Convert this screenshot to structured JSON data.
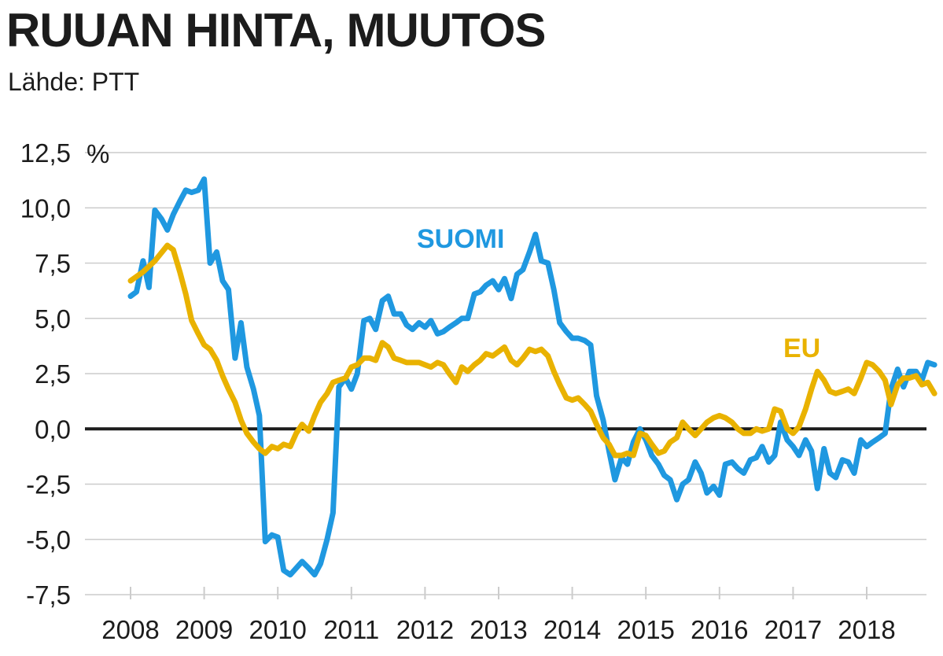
{
  "header": {
    "title": "RUUAN HINTA, MUUTOS",
    "source": "Lähde: PTT"
  },
  "colors": {
    "suomi": "#1f98e0",
    "eu": "#e9b200",
    "grid": "#cccccc",
    "zero": "#1c1c1c",
    "text": "#1c1c1c"
  },
  "chart_data": {
    "type": "line",
    "title": "RUUAN HINTA, MUUTOS",
    "subtitle": "Lähde: PTT",
    "ylabel": "%",
    "ylim": [
      -7.5,
      12.5
    ],
    "xlim": [
      2008,
      2018.85
    ],
    "grid": "horizontal",
    "y_ticks": [
      12.5,
      10.0,
      7.5,
      5.0,
      2.5,
      0.0,
      -2.5,
      -5.0,
      -7.5
    ],
    "y_tick_labels": [
      "12,5",
      "10,0",
      "7,5",
      "5,0",
      "2,5",
      "0,0",
      "-2,5",
      "-5,0",
      "-7,5"
    ],
    "x_ticks": [
      2008,
      2009,
      2010,
      2011,
      2012,
      2013,
      2014,
      2015,
      2016,
      2017,
      2018
    ],
    "x_tick_labels": [
      "2008",
      "2009",
      "2010",
      "2011",
      "2012",
      "2013",
      "2014",
      "2015",
      "2016",
      "2017",
      "2018"
    ],
    "series": [
      {
        "name": "SUOMI",
        "label": "SUOMI",
        "color": "#1f98e0",
        "points": [
          [
            2008.0,
            6.0
          ],
          [
            2008.08,
            6.2
          ],
          [
            2008.17,
            7.6
          ],
          [
            2008.25,
            6.4
          ],
          [
            2008.33,
            9.9
          ],
          [
            2008.42,
            9.5
          ],
          [
            2008.5,
            9.0
          ],
          [
            2008.58,
            9.7
          ],
          [
            2008.67,
            10.3
          ],
          [
            2008.75,
            10.8
          ],
          [
            2008.83,
            10.7
          ],
          [
            2008.92,
            10.8
          ],
          [
            2009.0,
            11.3
          ],
          [
            2009.08,
            7.5
          ],
          [
            2009.17,
            8.0
          ],
          [
            2009.25,
            6.7
          ],
          [
            2009.33,
            6.3
          ],
          [
            2009.42,
            3.2
          ],
          [
            2009.5,
            4.8
          ],
          [
            2009.58,
            2.8
          ],
          [
            2009.67,
            1.8
          ],
          [
            2009.75,
            0.6
          ],
          [
            2009.83,
            -5.1
          ],
          [
            2009.92,
            -4.8
          ],
          [
            2010.0,
            -4.9
          ],
          [
            2010.08,
            -6.4
          ],
          [
            2010.17,
            -6.6
          ],
          [
            2010.25,
            -6.3
          ],
          [
            2010.33,
            -6.0
          ],
          [
            2010.42,
            -6.3
          ],
          [
            2010.5,
            -6.6
          ],
          [
            2010.58,
            -6.1
          ],
          [
            2010.67,
            -5.0
          ],
          [
            2010.75,
            -3.8
          ],
          [
            2010.83,
            1.9
          ],
          [
            2010.92,
            2.3
          ],
          [
            2011.0,
            1.8
          ],
          [
            2011.08,
            2.5
          ],
          [
            2011.17,
            4.9
          ],
          [
            2011.25,
            5.0
          ],
          [
            2011.33,
            4.5
          ],
          [
            2011.42,
            5.8
          ],
          [
            2011.5,
            6.0
          ],
          [
            2011.58,
            5.2
          ],
          [
            2011.67,
            5.2
          ],
          [
            2011.75,
            4.7
          ],
          [
            2011.83,
            4.5
          ],
          [
            2011.92,
            4.8
          ],
          [
            2012.0,
            4.6
          ],
          [
            2012.08,
            4.9
          ],
          [
            2012.17,
            4.3
          ],
          [
            2012.25,
            4.4
          ],
          [
            2012.33,
            4.6
          ],
          [
            2012.42,
            4.8
          ],
          [
            2012.5,
            5.0
          ],
          [
            2012.58,
            5.0
          ],
          [
            2012.67,
            6.1
          ],
          [
            2012.75,
            6.2
          ],
          [
            2012.83,
            6.5
          ],
          [
            2012.92,
            6.7
          ],
          [
            2013.0,
            6.3
          ],
          [
            2013.08,
            6.8
          ],
          [
            2013.17,
            5.9
          ],
          [
            2013.25,
            7.0
          ],
          [
            2013.33,
            7.2
          ],
          [
            2013.42,
            8.0
          ],
          [
            2013.5,
            8.8
          ],
          [
            2013.58,
            7.6
          ],
          [
            2013.67,
            7.5
          ],
          [
            2013.75,
            6.3
          ],
          [
            2013.83,
            4.8
          ],
          [
            2013.92,
            4.4
          ],
          [
            2014.0,
            4.1
          ],
          [
            2014.08,
            4.1
          ],
          [
            2014.17,
            4.0
          ],
          [
            2014.25,
            3.8
          ],
          [
            2014.33,
            1.5
          ],
          [
            2014.42,
            0.4
          ],
          [
            2014.5,
            -1.0
          ],
          [
            2014.58,
            -2.3
          ],
          [
            2014.67,
            -1.3
          ],
          [
            2014.75,
            -1.6
          ],
          [
            2014.83,
            -0.6
          ],
          [
            2014.92,
            0.0
          ],
          [
            2015.0,
            -0.5
          ],
          [
            2015.08,
            -1.2
          ],
          [
            2015.17,
            -1.6
          ],
          [
            2015.25,
            -2.1
          ],
          [
            2015.33,
            -2.3
          ],
          [
            2015.42,
            -3.2
          ],
          [
            2015.5,
            -2.5
          ],
          [
            2015.58,
            -2.3
          ],
          [
            2015.67,
            -1.5
          ],
          [
            2015.75,
            -2.0
          ],
          [
            2015.83,
            -2.9
          ],
          [
            2015.92,
            -2.6
          ],
          [
            2016.0,
            -3.0
          ],
          [
            2016.08,
            -1.6
          ],
          [
            2016.17,
            -1.5
          ],
          [
            2016.25,
            -1.8
          ],
          [
            2016.33,
            -2.0
          ],
          [
            2016.42,
            -1.4
          ],
          [
            2016.5,
            -1.3
          ],
          [
            2016.58,
            -0.8
          ],
          [
            2016.67,
            -1.5
          ],
          [
            2016.75,
            -1.2
          ],
          [
            2016.83,
            0.3
          ],
          [
            2016.92,
            -0.5
          ],
          [
            2017.0,
            -0.8
          ],
          [
            2017.08,
            -1.2
          ],
          [
            2017.17,
            -0.5
          ],
          [
            2017.25,
            -1.0
          ],
          [
            2017.33,
            -2.7
          ],
          [
            2017.42,
            -0.9
          ],
          [
            2017.5,
            -2.0
          ],
          [
            2017.58,
            -2.2
          ],
          [
            2017.67,
            -1.4
          ],
          [
            2017.75,
            -1.5
          ],
          [
            2017.83,
            -2.0
          ],
          [
            2017.92,
            -0.5
          ],
          [
            2018.0,
            -0.8
          ],
          [
            2018.08,
            -0.6
          ],
          [
            2018.17,
            -0.4
          ],
          [
            2018.25,
            -0.2
          ],
          [
            2018.33,
            1.8
          ],
          [
            2018.42,
            2.7
          ],
          [
            2018.5,
            1.9
          ],
          [
            2018.58,
            2.6
          ],
          [
            2018.67,
            2.6
          ],
          [
            2018.75,
            2.2
          ],
          [
            2018.83,
            3.0
          ],
          [
            2018.92,
            2.9
          ]
        ]
      },
      {
        "name": "EU",
        "label": "EU",
        "color": "#e9b200",
        "points": [
          [
            2008.0,
            6.7
          ],
          [
            2008.17,
            7.1
          ],
          [
            2008.33,
            7.6
          ],
          [
            2008.5,
            8.3
          ],
          [
            2008.58,
            8.1
          ],
          [
            2008.67,
            7.1
          ],
          [
            2008.75,
            6.1
          ],
          [
            2008.83,
            4.9
          ],
          [
            2008.92,
            4.3
          ],
          [
            2009.0,
            3.8
          ],
          [
            2009.08,
            3.6
          ],
          [
            2009.17,
            3.1
          ],
          [
            2009.25,
            2.4
          ],
          [
            2009.33,
            1.8
          ],
          [
            2009.42,
            1.2
          ],
          [
            2009.5,
            0.4
          ],
          [
            2009.58,
            -0.2
          ],
          [
            2009.67,
            -0.6
          ],
          [
            2009.75,
            -0.9
          ],
          [
            2009.83,
            -1.1
          ],
          [
            2009.92,
            -0.8
          ],
          [
            2010.0,
            -0.9
          ],
          [
            2010.08,
            -0.7
          ],
          [
            2010.17,
            -0.8
          ],
          [
            2010.25,
            -0.2
          ],
          [
            2010.33,
            0.2
          ],
          [
            2010.42,
            -0.1
          ],
          [
            2010.5,
            0.6
          ],
          [
            2010.58,
            1.2
          ],
          [
            2010.67,
            1.6
          ],
          [
            2010.75,
            2.1
          ],
          [
            2010.83,
            2.2
          ],
          [
            2010.92,
            2.3
          ],
          [
            2011.0,
            2.8
          ],
          [
            2011.08,
            2.9
          ],
          [
            2011.17,
            3.2
          ],
          [
            2011.25,
            3.2
          ],
          [
            2011.33,
            3.1
          ],
          [
            2011.42,
            3.9
          ],
          [
            2011.5,
            3.7
          ],
          [
            2011.58,
            3.2
          ],
          [
            2011.67,
            3.1
          ],
          [
            2011.75,
            3.0
          ],
          [
            2011.83,
            3.0
          ],
          [
            2011.92,
            3.0
          ],
          [
            2012.0,
            2.9
          ],
          [
            2012.08,
            2.8
          ],
          [
            2012.17,
            3.0
          ],
          [
            2012.25,
            2.9
          ],
          [
            2012.33,
            2.5
          ],
          [
            2012.42,
            2.1
          ],
          [
            2012.5,
            2.8
          ],
          [
            2012.58,
            2.6
          ],
          [
            2012.67,
            2.9
          ],
          [
            2012.75,
            3.1
          ],
          [
            2012.83,
            3.4
          ],
          [
            2012.92,
            3.3
          ],
          [
            2013.0,
            3.5
          ],
          [
            2013.08,
            3.7
          ],
          [
            2013.17,
            3.1
          ],
          [
            2013.25,
            2.9
          ],
          [
            2013.33,
            3.2
          ],
          [
            2013.42,
            3.6
          ],
          [
            2013.5,
            3.5
          ],
          [
            2013.58,
            3.6
          ],
          [
            2013.67,
            3.3
          ],
          [
            2013.75,
            2.6
          ],
          [
            2013.83,
            2.0
          ],
          [
            2013.92,
            1.4
          ],
          [
            2014.0,
            1.3
          ],
          [
            2014.08,
            1.4
          ],
          [
            2014.17,
            1.1
          ],
          [
            2014.25,
            0.8
          ],
          [
            2014.33,
            0.2
          ],
          [
            2014.42,
            -0.4
          ],
          [
            2014.5,
            -0.7
          ],
          [
            2014.58,
            -1.2
          ],
          [
            2014.67,
            -1.2
          ],
          [
            2014.75,
            -1.1
          ],
          [
            2014.83,
            -1.2
          ],
          [
            2014.92,
            -0.2
          ],
          [
            2015.0,
            -0.3
          ],
          [
            2015.08,
            -0.7
          ],
          [
            2015.17,
            -1.1
          ],
          [
            2015.25,
            -1.0
          ],
          [
            2015.33,
            -0.6
          ],
          [
            2015.42,
            -0.4
          ],
          [
            2015.5,
            0.3
          ],
          [
            2015.58,
            0.0
          ],
          [
            2015.67,
            -0.3
          ],
          [
            2015.75,
            0.0
          ],
          [
            2015.83,
            0.3
          ],
          [
            2015.92,
            0.5
          ],
          [
            2016.0,
            0.6
          ],
          [
            2016.08,
            0.5
          ],
          [
            2016.17,
            0.3
          ],
          [
            2016.25,
            0.0
          ],
          [
            2016.33,
            -0.2
          ],
          [
            2016.42,
            -0.2
          ],
          [
            2016.5,
            0.0
          ],
          [
            2016.58,
            -0.1
          ],
          [
            2016.67,
            0.0
          ],
          [
            2016.75,
            0.9
          ],
          [
            2016.83,
            0.8
          ],
          [
            2016.92,
            0.0
          ],
          [
            2017.0,
            -0.2
          ],
          [
            2017.08,
            0.1
          ],
          [
            2017.17,
            0.9
          ],
          [
            2017.25,
            1.8
          ],
          [
            2017.33,
            2.6
          ],
          [
            2017.42,
            2.2
          ],
          [
            2017.5,
            1.7
          ],
          [
            2017.58,
            1.6
          ],
          [
            2017.67,
            1.7
          ],
          [
            2017.75,
            1.8
          ],
          [
            2017.83,
            1.6
          ],
          [
            2017.92,
            2.3
          ],
          [
            2018.0,
            3.0
          ],
          [
            2018.08,
            2.9
          ],
          [
            2018.17,
            2.6
          ],
          [
            2018.25,
            2.2
          ],
          [
            2018.33,
            1.1
          ],
          [
            2018.42,
            2.0
          ],
          [
            2018.5,
            2.3
          ],
          [
            2018.58,
            2.3
          ],
          [
            2018.67,
            2.4
          ],
          [
            2018.75,
            2.0
          ],
          [
            2018.83,
            2.1
          ],
          [
            2018.92,
            1.6
          ]
        ]
      }
    ]
  }
}
